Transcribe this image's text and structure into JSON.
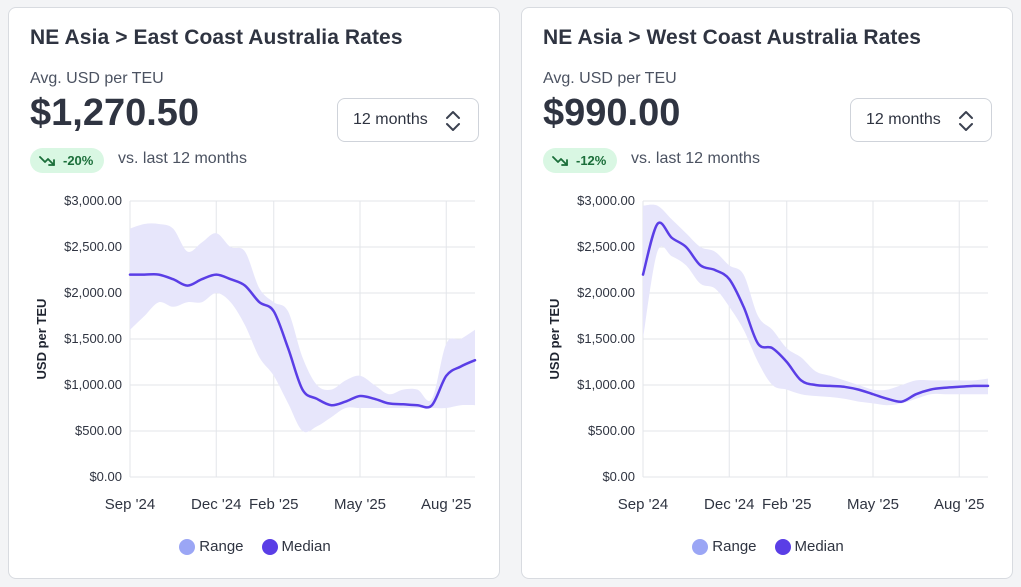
{
  "panels": [
    {
      "title": "NE Asia > East Coast Australia Rates",
      "metric_label": "Avg. USD per TEU",
      "metric_value": "$1,270.50",
      "period_select": "12 months",
      "change_badge": "-20%",
      "change_caption": "vs. last 12 months",
      "legend": {
        "range": "Range",
        "median": "Median"
      }
    },
    {
      "title": "NE Asia > West Coast Australia Rates",
      "metric_label": "Avg. USD per TEU",
      "metric_value": "$990.00",
      "period_select": "12 months",
      "change_badge": "-12%",
      "change_caption": "vs. last 12 months",
      "legend": {
        "range": "Range",
        "median": "Median"
      }
    }
  ],
  "colors": {
    "median": "#5a3ee6",
    "range_fill": "#e7e6fb",
    "legend_range": "#9ba6f5",
    "legend_median": "#5a3ee6",
    "badge_bg": "#d9f7e3",
    "badge_text": "#1b6e3a",
    "grid": "#e3e5ea"
  },
  "chart_data": [
    {
      "type": "area",
      "title": "NE Asia > East Coast Australia Rates",
      "ylabel": "USD per TEU",
      "xlabel": "",
      "ylim": [
        0,
        3000
      ],
      "yticks": [
        0,
        500,
        1000,
        1500,
        2000,
        2500,
        3000
      ],
      "ytick_labels": [
        "$0.00",
        "$500.00",
        "$1,000.00",
        "$1,500.00",
        "$2,000.00",
        "$2,500.00",
        "$3,000.00"
      ],
      "xlim": [
        0,
        12
      ],
      "xticks": [
        0,
        3,
        5,
        8,
        11
      ],
      "xtick_labels": [
        "Sep '24",
        "Dec '24",
        "Feb '25",
        "May '25",
        "Aug '25"
      ],
      "grid": true,
      "series": [
        {
          "name": "Median",
          "x": [
            0,
            0.5,
            1,
            1.5,
            2,
            2.5,
            3,
            3.5,
            4,
            4.5,
            5,
            5.5,
            6,
            6.5,
            7,
            7.5,
            8,
            8.5,
            9,
            9.5,
            10,
            10.5,
            11,
            11.5,
            12
          ],
          "values": [
            2200,
            2200,
            2200,
            2150,
            2080,
            2150,
            2200,
            2150,
            2080,
            1900,
            1800,
            1400,
            950,
            850,
            780,
            820,
            880,
            850,
            800,
            790,
            780,
            780,
            1100,
            1200,
            1270
          ]
        },
        {
          "name": "Range",
          "x": [
            0,
            0.5,
            1,
            1.5,
            2,
            2.5,
            3,
            3.5,
            4,
            4.5,
            5,
            5.5,
            6,
            6.5,
            7,
            7.5,
            8,
            8.5,
            9,
            9.5,
            10,
            10.5,
            11,
            11.5,
            12
          ],
          "upper": [
            2700,
            2750,
            2750,
            2700,
            2450,
            2550,
            2650,
            2500,
            2450,
            2050,
            1900,
            1800,
            1300,
            1000,
            950,
            1050,
            1100,
            1000,
            900,
            950,
            950,
            850,
            1450,
            1500,
            1600
          ],
          "lower": [
            1600,
            1750,
            1900,
            1850,
            1900,
            1900,
            2000,
            1900,
            1650,
            1300,
            1100,
            800,
            500,
            550,
            650,
            750,
            750,
            750,
            750,
            750,
            750,
            750,
            750,
            780,
            780
          ]
        }
      ],
      "legend": "bottom-center"
    },
    {
      "type": "area",
      "title": "NE Asia > West Coast Australia Rates",
      "ylabel": "USD per TEU",
      "xlabel": "",
      "ylim": [
        0,
        3000
      ],
      "yticks": [
        0,
        500,
        1000,
        1500,
        2000,
        2500,
        3000
      ],
      "ytick_labels": [
        "$0.00",
        "$500.00",
        "$1,000.00",
        "$1,500.00",
        "$2,000.00",
        "$2,500.00",
        "$3,000.00"
      ],
      "xlim": [
        0,
        12
      ],
      "xticks": [
        0,
        3,
        5,
        8,
        11
      ],
      "xtick_labels": [
        "Sep '24",
        "Dec '24",
        "Feb '25",
        "May '25",
        "Aug '25"
      ],
      "grid": true,
      "series": [
        {
          "name": "Median",
          "x": [
            0,
            0.5,
            1,
            1.5,
            2,
            2.5,
            3,
            3.5,
            4,
            4.5,
            5,
            5.5,
            6,
            6.5,
            7,
            7.5,
            8,
            8.5,
            9,
            9.5,
            10,
            10.5,
            11,
            11.5,
            12
          ],
          "values": [
            2200,
            2750,
            2600,
            2500,
            2300,
            2250,
            2150,
            1850,
            1450,
            1400,
            1250,
            1050,
            1000,
            990,
            980,
            950,
            900,
            850,
            820,
            900,
            950,
            970,
            980,
            990,
            990
          ],
          "values_note": "median path estimated from curve"
        },
        {
          "name": "Range",
          "x": [
            0,
            0.5,
            1,
            1.5,
            2,
            2.5,
            3,
            3.5,
            4,
            4.5,
            5,
            5.5,
            6,
            6.5,
            7,
            7.5,
            8,
            8.5,
            9,
            9.5,
            10,
            10.5,
            11,
            11.5,
            12
          ],
          "upper": [
            2950,
            2950,
            2800,
            2650,
            2500,
            2450,
            2300,
            2200,
            1750,
            1600,
            1400,
            1300,
            1150,
            1100,
            1050,
            1000,
            950,
            950,
            1000,
            1050,
            1050,
            1050,
            1050,
            1050,
            1070
          ],
          "lower": [
            1500,
            2450,
            2400,
            2300,
            2100,
            2050,
            1850,
            1600,
            1250,
            1000,
            950,
            900,
            880,
            870,
            850,
            820,
            800,
            780,
            800,
            850,
            900,
            900,
            900,
            900,
            900
          ]
        }
      ],
      "legend": "bottom-center"
    }
  ]
}
